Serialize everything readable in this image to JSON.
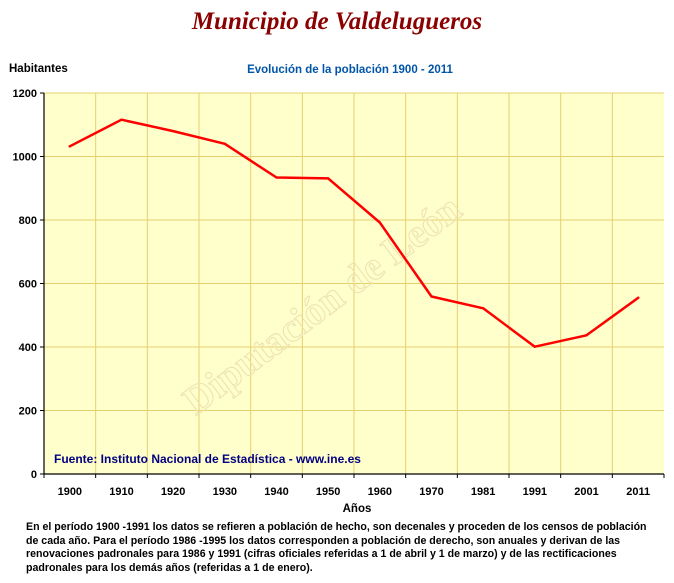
{
  "page": {
    "title": "Municipio de Valdelugueros",
    "footnote": "En el período 1900 -1991 los datos se refieren a población de hecho, son decenales y proceden de los censos de población de cada año. Para el período 1986 -1995 los datos corresponden a población de derecho, son anuales y derivan de las renovaciones padronales para 1986 y 1991 (cifras oficiales referidas a 1 de abril y 1 de marzo) y de las rectificaciones padronales para los demás años (referidas a 1 de enero)."
  },
  "chart_data": {
    "type": "line",
    "title": "Evolución de la población 1900 - 2011",
    "xlabel": "Años",
    "ylabel": "Habitantes",
    "categories": [
      "1900",
      "1910",
      "1920",
      "1930",
      "1940",
      "1950",
      "1960",
      "1970",
      "1981",
      "1991",
      "2001",
      "2011"
    ],
    "series": [
      {
        "values": [
          1032,
          1116,
          1080,
          1040,
          934,
          931,
          792,
          559,
          522,
          401,
          437,
          555
        ],
        "color": "#ff0000"
      }
    ],
    "ylim": [
      0,
      1200
    ],
    "yticks": [
      0,
      200,
      400,
      600,
      800,
      1000,
      1200
    ],
    "grid": true,
    "source_note": "Fuente: Instituto Nacional de Estadística - www.ine.es",
    "watermark": "Diputación de León",
    "colors": {
      "plot_background": "#ffffcc",
      "grid": "#e6cf6e",
      "title": "#0055aa",
      "source_note": "#000080",
      "main_title": "#8b0000"
    }
  }
}
